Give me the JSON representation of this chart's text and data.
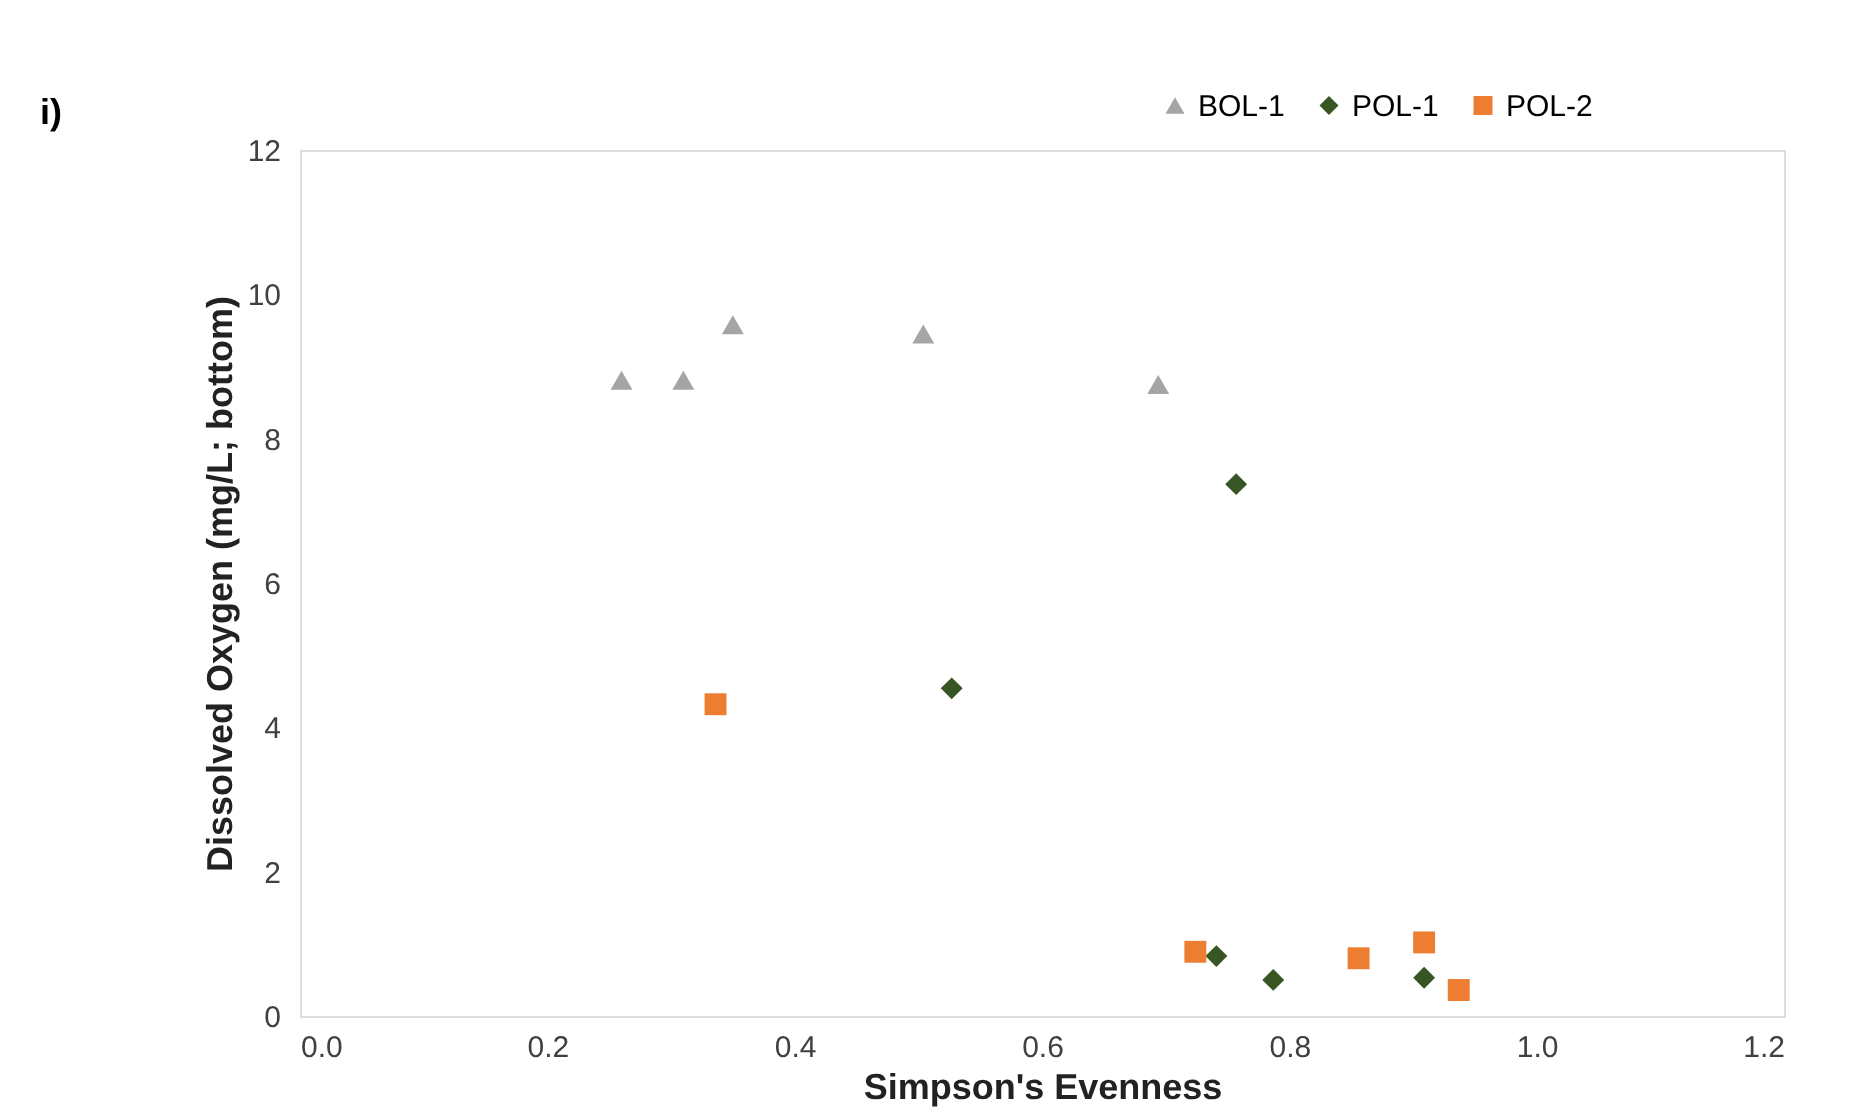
{
  "chart_data": {
    "type": "scatter",
    "xlabel": "Simpson's Evenness",
    "ylabel": "Dissolved Oxygen (mg/L; bottom)",
    "annotations": [
      "i)"
    ],
    "xlim": [
      0,
      1.2
    ],
    "xticks": [
      {
        "value": 0,
        "label": "0.0"
      },
      0.2,
      0.4,
      0.6,
      0.8,
      {
        "value": 1,
        "label": "1.0"
      },
      1.2
    ],
    "ylim": [
      0,
      12
    ],
    "yticks": [
      0,
      2,
      4,
      6,
      8,
      10,
      12
    ],
    "grid": false,
    "legend": "top right",
    "series": [
      {
        "name": "BOL-1",
        "color": "#a5a5a5",
        "marker": "triangle",
        "x": [
          0.26,
          0.31,
          0.35,
          0.504,
          0.694
        ],
        "values": [
          8.81,
          8.81,
          9.58,
          9.45,
          8.75
        ]
      },
      {
        "name": "POL-1",
        "color": "#375623",
        "marker": "diamond",
        "x": [
          0.757,
          0.527,
          0.741,
          0.787,
          0.909
        ],
        "values": [
          7.37,
          4.54,
          0.83,
          0.5,
          0.53
        ]
      },
      {
        "name": "POL-2",
        "color": "#ed7d31",
        "marker": "square",
        "x": [
          0.336,
          0.724,
          0.856,
          0.909,
          0.937
        ],
        "values": [
          4.32,
          0.89,
          0.8,
          1.02,
          0.36
        ]
      }
    ]
  }
}
